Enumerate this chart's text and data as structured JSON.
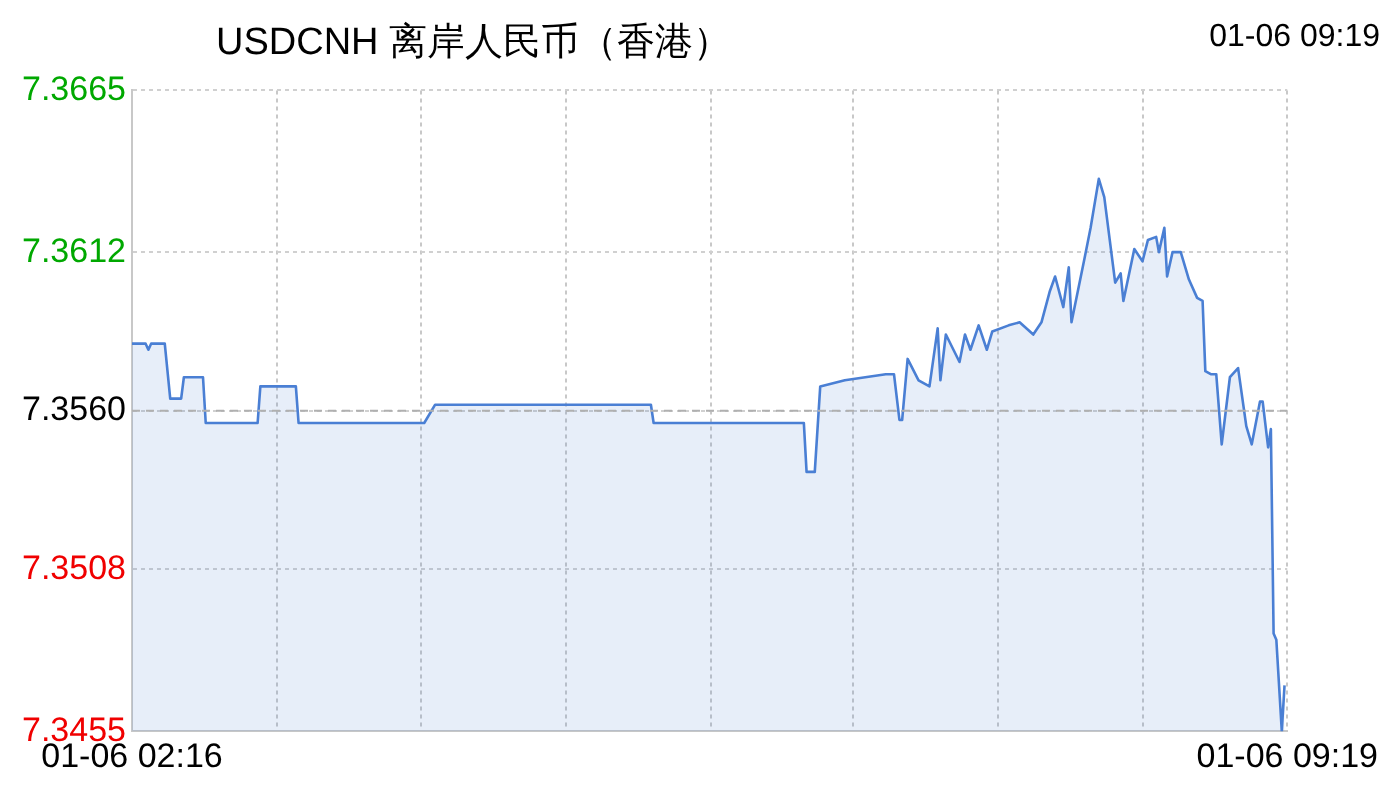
{
  "chart_data": {
    "type": "area",
    "title": "USDCNH 离岸人民币（香港）",
    "annotations": [
      "01-06 09:19"
    ],
    "xlim": [
      "--01-06T02:16",
      "--01-06T09:19"
    ],
    "xticks": [
      {
        "value": "--01-06T02:16",
        "label": "01-06 02:16"
      },
      {
        "value": "--01-06T03:09",
        "label": null
      },
      {
        "value": "--01-06T04:02",
        "label": null
      },
      {
        "value": "--01-06T04:55",
        "label": null
      },
      {
        "value": "--01-06T05:48",
        "label": null
      },
      {
        "value": "--01-06T06:40",
        "label": null
      },
      {
        "value": "--01-06T07:33",
        "label": null
      },
      {
        "value": "--01-06T08:26",
        "label": null
      },
      {
        "value": "--01-06T09:19",
        "label": "01-06 09:19"
      }
    ],
    "ylim": [
      7.3455,
      7.3665
    ],
    "yticks": [
      7.3455,
      7.3508,
      {
        "value": 7.356,
        "label": "7.3560"
      },
      7.3612,
      7.3665
    ],
    "grid": true,
    "marker": "none",
    "line_style": "solid",
    "ref_lines": [
      {
        "axis": "y",
        "value": 7.356,
        "color": "#b0b0b0",
        "line_style": "dashed"
      }
    ],
    "series": [
      {
        "color": "#4a7fd4",
        "x": [
          "--01-06T02:16",
          "--01-06T02:21",
          "--01-06T02:22",
          "--01-06T02:23",
          "--01-06T02:28",
          "--01-06T02:30",
          "--01-06T02:34",
          "--01-06T02:35",
          "--01-06T02:42",
          "--01-06T02:43",
          "--01-06T03:02",
          "--01-06T03:03",
          "--01-06T03:16",
          "--01-06T03:17",
          "--01-06T04:03",
          "--01-06T04:07",
          "--01-06T05:26",
          "--01-06T05:27",
          "--01-06T06:22",
          "--01-06T06:23",
          "--01-06T06:26",
          "--01-06T06:28",
          "--01-06T06:37",
          "--01-06T06:52",
          "--01-06T06:55",
          "--01-06T06:57",
          "--01-06T06:58",
          "--01-06T07:00",
          "--01-06T07:04",
          "--01-06T07:08",
          "--01-06T07:11",
          "--01-06T07:12",
          "--01-06T07:14",
          "--01-06T07:19",
          "--01-06T07:21",
          "--01-06T07:23",
          "--01-06T07:26",
          "--01-06T07:29",
          "--01-06T07:31",
          "--01-06T07:37",
          "--01-06T07:41",
          "--01-06T07:46",
          "--01-06T07:49",
          "--01-06T07:52",
          "--01-06T07:54",
          "--01-06T07:57",
          "--01-06T07:59",
          "--01-06T08:00",
          "--01-06T08:05",
          "--01-06T08:07",
          "--01-06T08:10",
          "--01-06T08:12",
          "--01-06T08:14",
          "--01-06T08:16",
          "--01-06T08:18",
          "--01-06T08:19",
          "--01-06T08:23",
          "--01-06T08:26",
          "--01-06T08:28",
          "--01-06T08:31",
          "--01-06T08:32",
          "--01-06T08:34",
          "--01-06T08:35",
          "--01-06T08:37",
          "--01-06T08:40",
          "--01-06T08:43",
          "--01-06T08:46",
          "--01-06T08:48",
          "--01-06T08:49",
          "--01-06T08:51",
          "--01-06T08:53",
          "--01-06T08:55",
          "--01-06T08:58",
          "--01-06T09:01",
          "--01-06T09:04",
          "--01-06T09:06",
          "--01-06T09:09",
          "--01-06T09:10",
          "--01-06T09:12",
          "--01-06T09:13",
          "--01-06T09:14",
          "--01-06T09:15",
          "--01-06T09:17",
          "--01-06T09:18"
        ],
        "values": [
          7.3582,
          7.3582,
          7.358,
          7.3582,
          7.3582,
          7.3564,
          7.3564,
          7.3571,
          7.3571,
          7.3556,
          7.3556,
          7.3568,
          7.3568,
          7.3556,
          7.3556,
          7.3562,
          7.3562,
          7.3556,
          7.3556,
          7.354,
          7.354,
          7.3568,
          7.357,
          7.3572,
          7.3572,
          7.3557,
          7.3557,
          7.3577,
          7.357,
          7.3568,
          7.3587,
          7.357,
          7.3585,
          7.3576,
          7.3585,
          7.358,
          7.3588,
          7.358,
          7.3586,
          7.3588,
          7.3589,
          7.3585,
          7.3589,
          7.3599,
          7.3604,
          7.3594,
          7.3607,
          7.3589,
          7.3611,
          7.362,
          7.3636,
          7.363,
          7.3616,
          7.3602,
          7.3605,
          7.3596,
          7.3613,
          7.3609,
          7.3616,
          7.3617,
          7.3612,
          7.362,
          7.3604,
          7.3612,
          7.3612,
          7.3603,
          7.3597,
          7.3596,
          7.3573,
          7.3572,
          7.3572,
          7.3549,
          7.3571,
          7.3574,
          7.3555,
          7.3549,
          7.3563,
          7.3563,
          7.3548,
          7.3554,
          7.3487,
          7.3485,
          7.3455,
          7.347
        ]
      }
    ]
  }
}
